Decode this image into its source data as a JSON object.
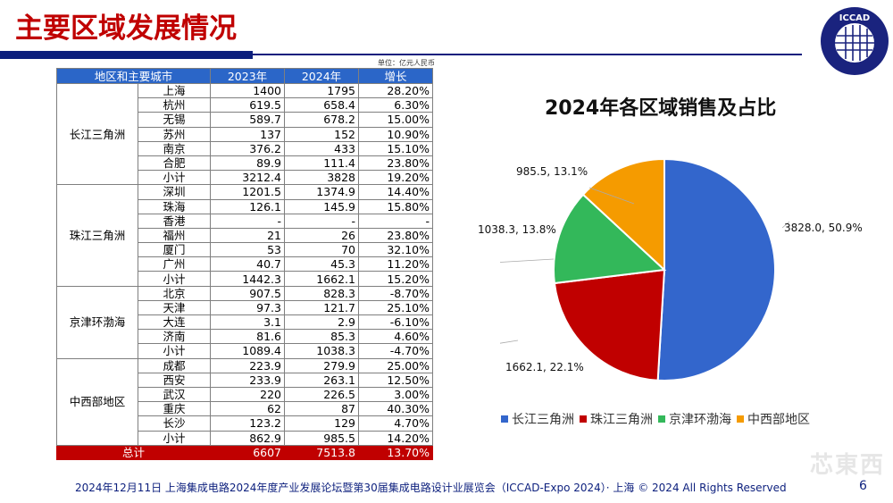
{
  "slide": {
    "title": "主要区域发展情况",
    "unit": "单位：亿元人民币",
    "logo_text": "ICCAD",
    "footer": "2024年12月11日 上海集成电路2024年度产业发展论坛暨第30届集成电路设计业展览会（ICCAD-Expo 2024）· 上海 © 2024 All Rights Reserved",
    "page_number": "6",
    "watermark": "芯東西"
  },
  "table": {
    "headers": [
      "地区和主要城市",
      "2023年",
      "2024年",
      "增长"
    ],
    "groups": [
      {
        "region": "长江三角洲",
        "rows": [
          {
            "city": "上海",
            "y2023": "1400",
            "y2024": "1795",
            "growth": "28.20%"
          },
          {
            "city": "杭州",
            "y2023": "619.5",
            "y2024": "658.4",
            "growth": "6.30%"
          },
          {
            "city": "无锡",
            "y2023": "589.7",
            "y2024": "678.2",
            "growth": "15.00%"
          },
          {
            "city": "苏州",
            "y2023": "137",
            "y2024": "152",
            "growth": "10.90%"
          },
          {
            "city": "南京",
            "y2023": "376.2",
            "y2024": "433",
            "growth": "15.10%"
          },
          {
            "city": "合肥",
            "y2023": "89.9",
            "y2024": "111.4",
            "growth": "23.80%"
          },
          {
            "city": "小计",
            "y2023": "3212.4",
            "y2024": "3828",
            "growth": "19.20%"
          }
        ]
      },
      {
        "region": "珠江三角洲",
        "rows": [
          {
            "city": "深圳",
            "y2023": "1201.5",
            "y2024": "1374.9",
            "growth": "14.40%"
          },
          {
            "city": "珠海",
            "y2023": "126.1",
            "y2024": "145.9",
            "growth": "15.80%"
          },
          {
            "city": "香港",
            "y2023": "-",
            "y2024": "-",
            "growth": "-"
          },
          {
            "city": "福州",
            "y2023": "21",
            "y2024": "26",
            "growth": "23.80%"
          },
          {
            "city": "厦门",
            "y2023": "53",
            "y2024": "70",
            "growth": "32.10%"
          },
          {
            "city": "广州",
            "y2023": "40.7",
            "y2024": "45.3",
            "growth": "11.20%"
          },
          {
            "city": "小计",
            "y2023": "1442.3",
            "y2024": "1662.1",
            "growth": "15.20%"
          }
        ]
      },
      {
        "region": "京津环渤海",
        "rows": [
          {
            "city": "北京",
            "y2023": "907.5",
            "y2024": "828.3",
            "growth": "-8.70%"
          },
          {
            "city": "天津",
            "y2023": "97.3",
            "y2024": "121.7",
            "growth": "25.10%"
          },
          {
            "city": "大连",
            "y2023": "3.1",
            "y2024": "2.9",
            "growth": "-6.10%"
          },
          {
            "city": "济南",
            "y2023": "81.6",
            "y2024": "85.3",
            "growth": "4.60%"
          },
          {
            "city": "小计",
            "y2023": "1089.4",
            "y2024": "1038.3",
            "growth": "-4.70%"
          }
        ]
      },
      {
        "region": "中西部地区",
        "rows": [
          {
            "city": "成都",
            "y2023": "223.9",
            "y2024": "279.9",
            "growth": "25.00%"
          },
          {
            "city": "西安",
            "y2023": "233.9",
            "y2024": "263.1",
            "growth": "12.50%"
          },
          {
            "city": "武汉",
            "y2023": "220",
            "y2024": "226.5",
            "growth": "3.00%"
          },
          {
            "city": "重庆",
            "y2023": "62",
            "y2024": "87",
            "growth": "40.30%"
          },
          {
            "city": "长沙",
            "y2023": "123.2",
            "y2024": "129",
            "growth": "4.70%"
          },
          {
            "city": "小计",
            "y2023": "862.9",
            "y2024": "985.5",
            "growth": "14.20%"
          }
        ]
      }
    ],
    "total": {
      "label": "总计",
      "y2023": "6607",
      "y2024": "7513.8",
      "growth": "13.70%"
    }
  },
  "chart_data": [
    {
      "type": "table",
      "title": "主要区域发展情况",
      "unit": "亿元人民币",
      "columns": [
        "地区",
        "城市",
        "2023年",
        "2024年",
        "增长"
      ],
      "rows": [
        [
          "长江三角洲",
          "上海",
          1400,
          1795,
          "28.20%"
        ],
        [
          "长江三角洲",
          "杭州",
          619.5,
          658.4,
          "6.30%"
        ],
        [
          "长江三角洲",
          "无锡",
          589.7,
          678.2,
          "15.00%"
        ],
        [
          "长江三角洲",
          "苏州",
          137,
          152,
          "10.90%"
        ],
        [
          "长江三角洲",
          "南京",
          376.2,
          433,
          "15.10%"
        ],
        [
          "长江三角洲",
          "合肥",
          89.9,
          111.4,
          "23.80%"
        ],
        [
          "长江三角洲",
          "小计",
          3212.4,
          3828,
          "19.20%"
        ],
        [
          "珠江三角洲",
          "深圳",
          1201.5,
          1374.9,
          "14.40%"
        ],
        [
          "珠江三角洲",
          "珠海",
          126.1,
          145.9,
          "15.80%"
        ],
        [
          "珠江三角洲",
          "香港",
          "-",
          "-",
          "-"
        ],
        [
          "珠江三角洲",
          "福州",
          21,
          26,
          "23.80%"
        ],
        [
          "珠江三角洲",
          "厦门",
          53,
          70,
          "32.10%"
        ],
        [
          "珠江三角洲",
          "广州",
          40.7,
          45.3,
          "11.20%"
        ],
        [
          "珠江三角洲",
          "小计",
          1442.3,
          1662.1,
          "15.20%"
        ],
        [
          "京津环渤海",
          "北京",
          907.5,
          828.3,
          "-8.70%"
        ],
        [
          "京津环渤海",
          "天津",
          97.3,
          121.7,
          "25.10%"
        ],
        [
          "京津环渤海",
          "大连",
          3.1,
          2.9,
          "-6.10%"
        ],
        [
          "京津环渤海",
          "济南",
          81.6,
          85.3,
          "4.60%"
        ],
        [
          "京津环渤海",
          "小计",
          1089.4,
          1038.3,
          "-4.70%"
        ],
        [
          "中西部地区",
          "成都",
          223.9,
          279.9,
          "25.00%"
        ],
        [
          "中西部地区",
          "西安",
          233.9,
          263.1,
          "12.50%"
        ],
        [
          "中西部地区",
          "武汉",
          220,
          226.5,
          "3.00%"
        ],
        [
          "中西部地区",
          "重庆",
          62,
          87,
          "40.30%"
        ],
        [
          "中西部地区",
          "长沙",
          123.2,
          129,
          "4.70%"
        ],
        [
          "中西部地区",
          "小计",
          862.9,
          985.5,
          "14.20%"
        ],
        [
          "总计",
          "",
          6607,
          7513.8,
          "13.70%"
        ]
      ]
    },
    {
      "type": "pie",
      "title": "2024年各区域销售及占比",
      "categories": [
        "长江三角洲",
        "珠江三角洲",
        "京津环渤海",
        "中西部地区"
      ],
      "values": [
        3828.0,
        1662.1,
        1038.3,
        985.5
      ],
      "percentages": [
        50.9,
        22.1,
        13.8,
        13.1
      ],
      "labels": [
        "3828.0, 50.9%",
        "1662.1, 22.1%",
        "1038.3, 13.8%",
        "985.5, 13.1%"
      ],
      "colors": [
        "#3366cc",
        "#c00000",
        "#33b85a",
        "#f59b00"
      ],
      "legend_position": "bottom"
    }
  ]
}
